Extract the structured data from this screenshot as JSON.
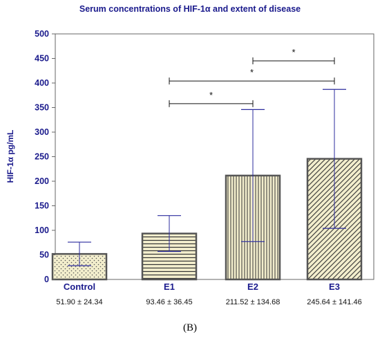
{
  "chart_data": {
    "type": "bar",
    "title": "Serum concentrations of HIF-1α  and extent of disease",
    "ylabel": "HIF-1α pg/mL",
    "xlabel": "",
    "ylim": [
      0,
      500
    ],
    "yticks": [
      0,
      50,
      100,
      150,
      200,
      250,
      300,
      350,
      400,
      450,
      500
    ],
    "grid": false,
    "categories": [
      "Control",
      "E1",
      "E2",
      "E3"
    ],
    "values": [
      51.9,
      93.46,
      211.52,
      245.64
    ],
    "error_low": [
      28,
      57,
      77,
      104
    ],
    "error_high": [
      76,
      130,
      346,
      387
    ],
    "stats_labels": [
      "51.90 ± 24.34",
      "93.46 ± 36.45",
      "211.52 ± 134.68",
      "245.64 ± 141.46"
    ],
    "patterns": [
      "dots",
      "horizontal-lines",
      "vertical-lines",
      "diagonal-lines"
    ],
    "bar_fill_color": "#f3eecd",
    "error_bar_color": "#2b2b9e",
    "significance": [
      {
        "from": "E1",
        "to": "E2",
        "y": 358,
        "label": "*"
      },
      {
        "from": "E1",
        "to": "E3",
        "y": 404,
        "label": "*"
      },
      {
        "from": "E2",
        "to": "E3",
        "y": 445,
        "label": "*"
      }
    ]
  },
  "panel_label": "(B)"
}
